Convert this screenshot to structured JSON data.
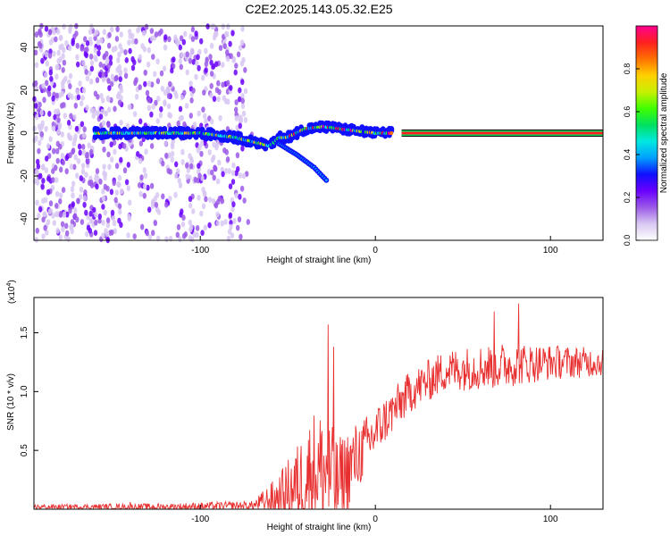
{
  "title": "C2E2.2025.143.05.32.E25",
  "chart_data": [
    {
      "type": "heatmap",
      "title": "C2E2.2025.143.05.32.E25",
      "xlabel": "Height of straight line (km)",
      "ylabel": "Frequency (Hz)",
      "xlim": [
        -195,
        130
      ],
      "ylim": [
        -50,
        50
      ],
      "x_ticks": [
        -100,
        0,
        100
      ],
      "y_ticks": [
        -40,
        -20,
        0,
        20,
        40
      ],
      "colorbar": {
        "label": "Normalized spectral amplitude",
        "range": [
          0,
          1
        ],
        "ticks": [
          "0.0",
          "0.2",
          "0.4",
          "0.6",
          "0.8"
        ],
        "colors": [
          "#ffffff",
          "#d8c8f2",
          "#9b59e8",
          "#6a00ff",
          "#1010ff",
          "#00a0ff",
          "#00e8e0",
          "#00e060",
          "#40ff00",
          "#c8f000",
          "#ffd000",
          "#ff7000",
          "#ff2020",
          "#ff0090"
        ]
      },
      "ridge": {
        "points": [
          {
            "x": -160,
            "y": 0
          },
          {
            "x": -140,
            "y": 0
          },
          {
            "x": -120,
            "y": 0
          },
          {
            "x": -100,
            "y": 0
          },
          {
            "x": -80,
            "y": -2
          },
          {
            "x": -70,
            "y": -4
          },
          {
            "x": -60,
            "y": -6
          },
          {
            "x": -55,
            "y": -2
          },
          {
            "x": -50,
            "y": -2
          },
          {
            "x": -40,
            "y": 2
          },
          {
            "x": -30,
            "y": 3
          },
          {
            "x": -20,
            "y": 2
          },
          {
            "x": -10,
            "y": 1
          },
          {
            "x": 0,
            "y": 0
          },
          {
            "x": 10,
            "y": 0
          }
        ],
        "branch": [
          {
            "x": -55,
            "y": -5
          },
          {
            "x": -45,
            "y": -10
          },
          {
            "x": -35,
            "y": -16
          },
          {
            "x": -28,
            "y": -22
          }
        ],
        "steady_line": {
          "x_start": 15,
          "x_end": 130,
          "y": 0
        }
      }
    },
    {
      "type": "line",
      "title": "",
      "xlabel": "Height of straight line (km)",
      "ylabel": "SNR (10 * v/v)",
      "y_multiplier": "(x10",
      "y_multiplier_exp": "4",
      "y_multiplier_close": ")",
      "xlim": [
        -195,
        130
      ],
      "ylim": [
        0,
        1.8
      ],
      "x_ticks": [
        -100,
        0,
        100
      ],
      "y_ticks": [
        0.5,
        1.0,
        1.5
      ],
      "color": "#e83030",
      "envelope": [
        {
          "x": -195,
          "base": 0.02,
          "amp": 0.02
        },
        {
          "x": -120,
          "base": 0.02,
          "amp": 0.03
        },
        {
          "x": -70,
          "base": 0.03,
          "amp": 0.04
        },
        {
          "x": -55,
          "base": 0.1,
          "amp": 0.2
        },
        {
          "x": -45,
          "base": 0.2,
          "amp": 0.35
        },
        {
          "x": -35,
          "base": 0.35,
          "amp": 0.5
        },
        {
          "x": -28,
          "base": 0.3,
          "amp": 0.55
        },
        {
          "x": -22,
          "base": 0.2,
          "amp": 0.4
        },
        {
          "x": -15,
          "base": 0.35,
          "amp": 0.35
        },
        {
          "x": -5,
          "base": 0.55,
          "amp": 0.25
        },
        {
          "x": 5,
          "base": 0.75,
          "amp": 0.2
        },
        {
          "x": 20,
          "base": 1.0,
          "amp": 0.18
        },
        {
          "x": 40,
          "base": 1.18,
          "amp": 0.18
        },
        {
          "x": 70,
          "base": 1.22,
          "amp": 0.2
        },
        {
          "x": 100,
          "base": 1.25,
          "amp": 0.15
        },
        {
          "x": 130,
          "base": 1.25,
          "amp": 0.12
        }
      ],
      "peaks": [
        {
          "x": -27,
          "y": 1.57
        },
        {
          "x": -24,
          "y": 1.38
        },
        {
          "x": 82,
          "y": 1.75
        },
        {
          "x": 68,
          "y": 1.68
        },
        {
          "x": -140,
          "y": 0.06
        }
      ]
    }
  ]
}
